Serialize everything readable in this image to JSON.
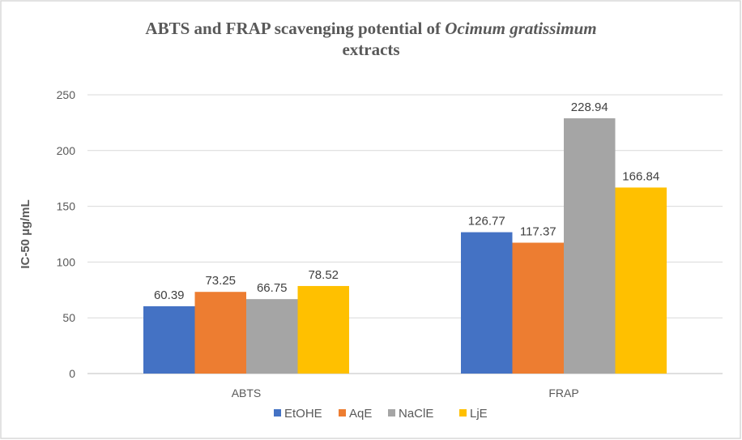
{
  "chart_data": {
    "type": "bar",
    "title": "ABTS and FRAP scavenging potential of ",
    "title_italic": "Ocimum gratissimum",
    "title_line2": "extracts",
    "xlabel": "",
    "ylabel": "IC-50  µg/mL",
    "categories": [
      "ABTS",
      "FRAP"
    ],
    "series": [
      {
        "name": "EtOHE",
        "color": "#4472C4",
        "values": [
          60.39,
          126.77
        ],
        "labels": [
          "60.39",
          "126.77"
        ]
      },
      {
        "name": "AqE",
        "color": "#ED7D31",
        "values": [
          73.25,
          117.37
        ],
        "labels": [
          "73.25",
          "117.37"
        ]
      },
      {
        "name": "NaClE",
        "color": "#A5A5A5",
        "values": [
          66.75,
          228.94
        ],
        "labels": [
          "66.75",
          "228.94"
        ]
      },
      {
        "name": "LjE",
        "color": "#FFC000",
        "values": [
          78.52,
          166.84
        ],
        "labels": [
          "78.52",
          "166.84"
        ]
      }
    ],
    "ylim": [
      0,
      250
    ],
    "yticks": [
      "0",
      "50",
      "100",
      "150",
      "200",
      "250"
    ],
    "grid": true,
    "legend": "bottom"
  }
}
